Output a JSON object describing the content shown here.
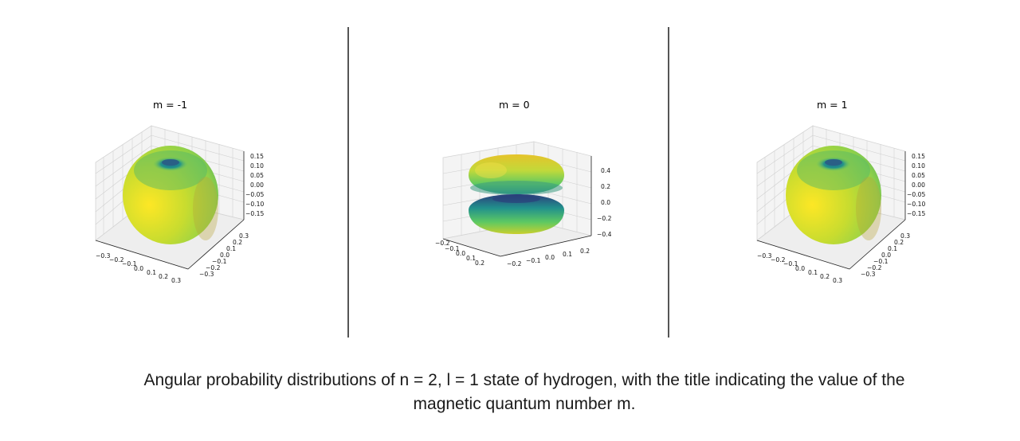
{
  "panels": [
    {
      "title": "m = -1",
      "z_ticks": [
        "0.15",
        "0.10",
        "0.05",
        "0.00",
        "−0.05",
        "−0.10",
        "−0.15"
      ],
      "x_ticks": [
        "−0.3",
        "−0.2",
        "−0.1",
        "0.0",
        "0.1",
        "0.2",
        "0.3"
      ],
      "y_ticks": [
        "0.3",
        "0.2",
        "0.1",
        "0.0",
        "−0.1",
        "−0.2",
        "−0.3"
      ]
    },
    {
      "title": "m = 0",
      "z_ticks": [
        "0.4",
        "0.2",
        "0.0",
        "−0.2",
        "−0.4"
      ],
      "x_ticks": [
        "−0.2",
        "−0.1",
        "0.0",
        "0.1",
        "0.2"
      ],
      "y_ticks": [
        "−0.2",
        "−0.1",
        "0.0",
        "0.1",
        "0.2"
      ]
    },
    {
      "title": "m = 1",
      "z_ticks": [
        "0.15",
        "0.10",
        "0.05",
        "0.00",
        "−0.05",
        "−0.10",
        "−0.15"
      ],
      "x_ticks": [
        "−0.3",
        "−0.2",
        "−0.1",
        "0.0",
        "0.1",
        "0.2",
        "0.3"
      ],
      "y_ticks": [
        "0.3",
        "0.2",
        "0.1",
        "0.0",
        "−0.1",
        "−0.2",
        "−0.3"
      ]
    }
  ],
  "caption": {
    "line1": "Angular probability distributions of n = 2, l = 1 state of hydrogen, with the title indicating the value of the",
    "line2": "magnetic quantum number m."
  },
  "colors": {
    "viridis_yellow": "#fde725",
    "viridis_green": "#5ec962",
    "viridis_teal": "#21918c",
    "viridis_blue": "#3b528b",
    "viridis_purple": "#440154",
    "divider": "#555555"
  }
}
